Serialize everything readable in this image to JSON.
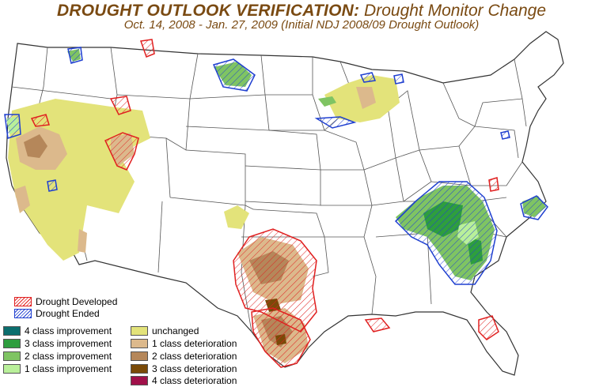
{
  "title": {
    "part1": "DROUGHT OUTLOOK VERIFICATION:",
    "part2": "Drought Monitor Change"
  },
  "subtitle": "Oct. 14, 2008 - Jan. 27, 2009 (Initial NDJ 2008/09 Drought Outlook)",
  "legend": {
    "hatch": [
      {
        "label": "Drought Developed",
        "color": "#e02020"
      },
      {
        "label": "Drought Ended",
        "color": "#2040d0"
      }
    ],
    "improvement": [
      {
        "label": "4 class improvement",
        "color": "#0b6e6e"
      },
      {
        "label": "3 class improvement",
        "color": "#2e9e3e"
      },
      {
        "label": "2 class improvement",
        "color": "#7fc463"
      },
      {
        "label": "1 class improvement",
        "color": "#b9f09a"
      }
    ],
    "deterioration": [
      {
        "label": "unchanged",
        "color": "#e3e37a"
      },
      {
        "label": "1 class deterioration",
        "color": "#dcb98c"
      },
      {
        "label": "2 class deterioration",
        "color": "#b5875a"
      },
      {
        "label": "3 class deterioration",
        "color": "#7a4a08"
      },
      {
        "label": "4 class deterioration",
        "color": "#a0104a"
      }
    ]
  },
  "colors": {
    "title": "#7a4a12",
    "state_lines": "#555555"
  }
}
